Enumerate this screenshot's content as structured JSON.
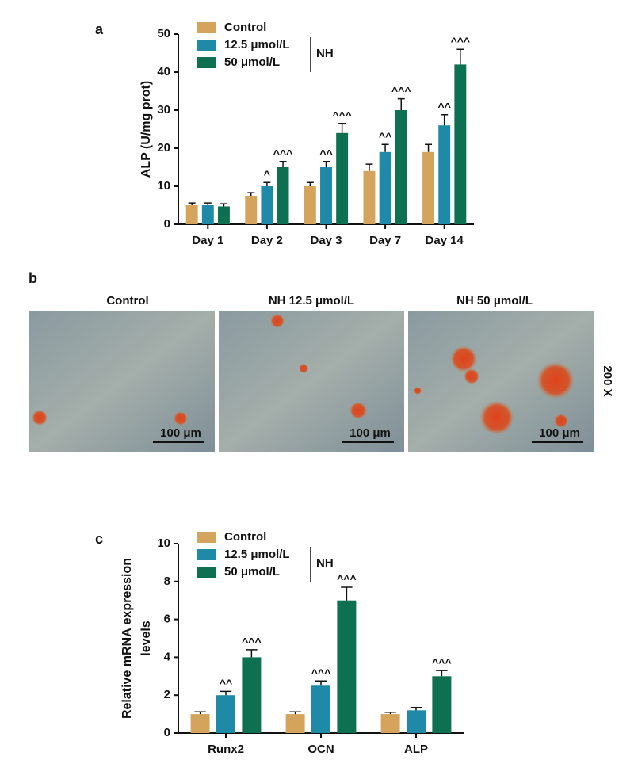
{
  "chart_data": [
    {
      "type": "bar",
      "panel_label": "a",
      "ylabel": [
        "ALP (U/mg prot)"
      ],
      "categories": [
        "Day 1",
        "Day 2",
        "Day 3",
        "Day 7",
        "Day 14"
      ],
      "series": [
        {
          "name": "Control",
          "color": "#d4a35c",
          "values": [
            5,
            7.5,
            10,
            14,
            19
          ],
          "errors": [
            0.6,
            0.8,
            1,
            1.8,
            2
          ],
          "significance": [
            null,
            null,
            null,
            null,
            null
          ]
        },
        {
          "name": "12.5 μmol/L",
          "color": "#1f8aa8",
          "values": [
            5,
            10,
            15,
            19,
            26
          ],
          "errors": [
            0.6,
            1,
            1.5,
            2,
            2.8
          ],
          "significance": [
            null,
            "^",
            "^^",
            "^^",
            "^^"
          ]
        },
        {
          "name": "50 μmol/L",
          "color": "#0d7050",
          "values": [
            4.7,
            15,
            24,
            30,
            42
          ],
          "errors": [
            0.7,
            1.5,
            2.5,
            3,
            4
          ],
          "significance": [
            null,
            "^^^",
            "^^^",
            "^^^",
            "^^^"
          ]
        }
      ],
      "legend_group": "NH",
      "ylim": [
        0,
        50
      ],
      "yticks": [
        0,
        10,
        20,
        30,
        40,
        50
      ]
    },
    {
      "type": "bar",
      "panel_label": "c",
      "ylabel": [
        "Relative mRNA expression",
        "levels"
      ],
      "categories": [
        "Runx2",
        "OCN",
        "ALP"
      ],
      "series": [
        {
          "name": "Control",
          "color": "#d4a35c",
          "values": [
            1,
            1,
            1
          ],
          "errors": [
            0.12,
            0.12,
            0.1
          ],
          "significance": [
            null,
            null,
            null
          ]
        },
        {
          "name": "12.5 μmol/L",
          "color": "#1f8aa8",
          "values": [
            2,
            2.5,
            1.2
          ],
          "errors": [
            0.2,
            0.25,
            0.15
          ],
          "significance": [
            "^^",
            "^^^",
            null
          ]
        },
        {
          "name": "50 μmol/L",
          "color": "#0d7050",
          "values": [
            4,
            7,
            3
          ],
          "errors": [
            0.4,
            0.7,
            0.3
          ],
          "significance": [
            "^^^",
            "^^^",
            "^^^"
          ]
        }
      ],
      "legend_group": "NH",
      "ylim": [
        0,
        10
      ],
      "yticks": [
        0,
        2,
        4,
        6,
        8,
        10
      ]
    }
  ],
  "panel_b": {
    "label": "b",
    "captions": [
      "Control",
      "NH 12.5 μmol/L",
      "NH 50 μmol/L"
    ],
    "scale_bars": [
      "100 μm",
      "100 μm",
      "100 μm"
    ],
    "magnification": "200 X"
  }
}
